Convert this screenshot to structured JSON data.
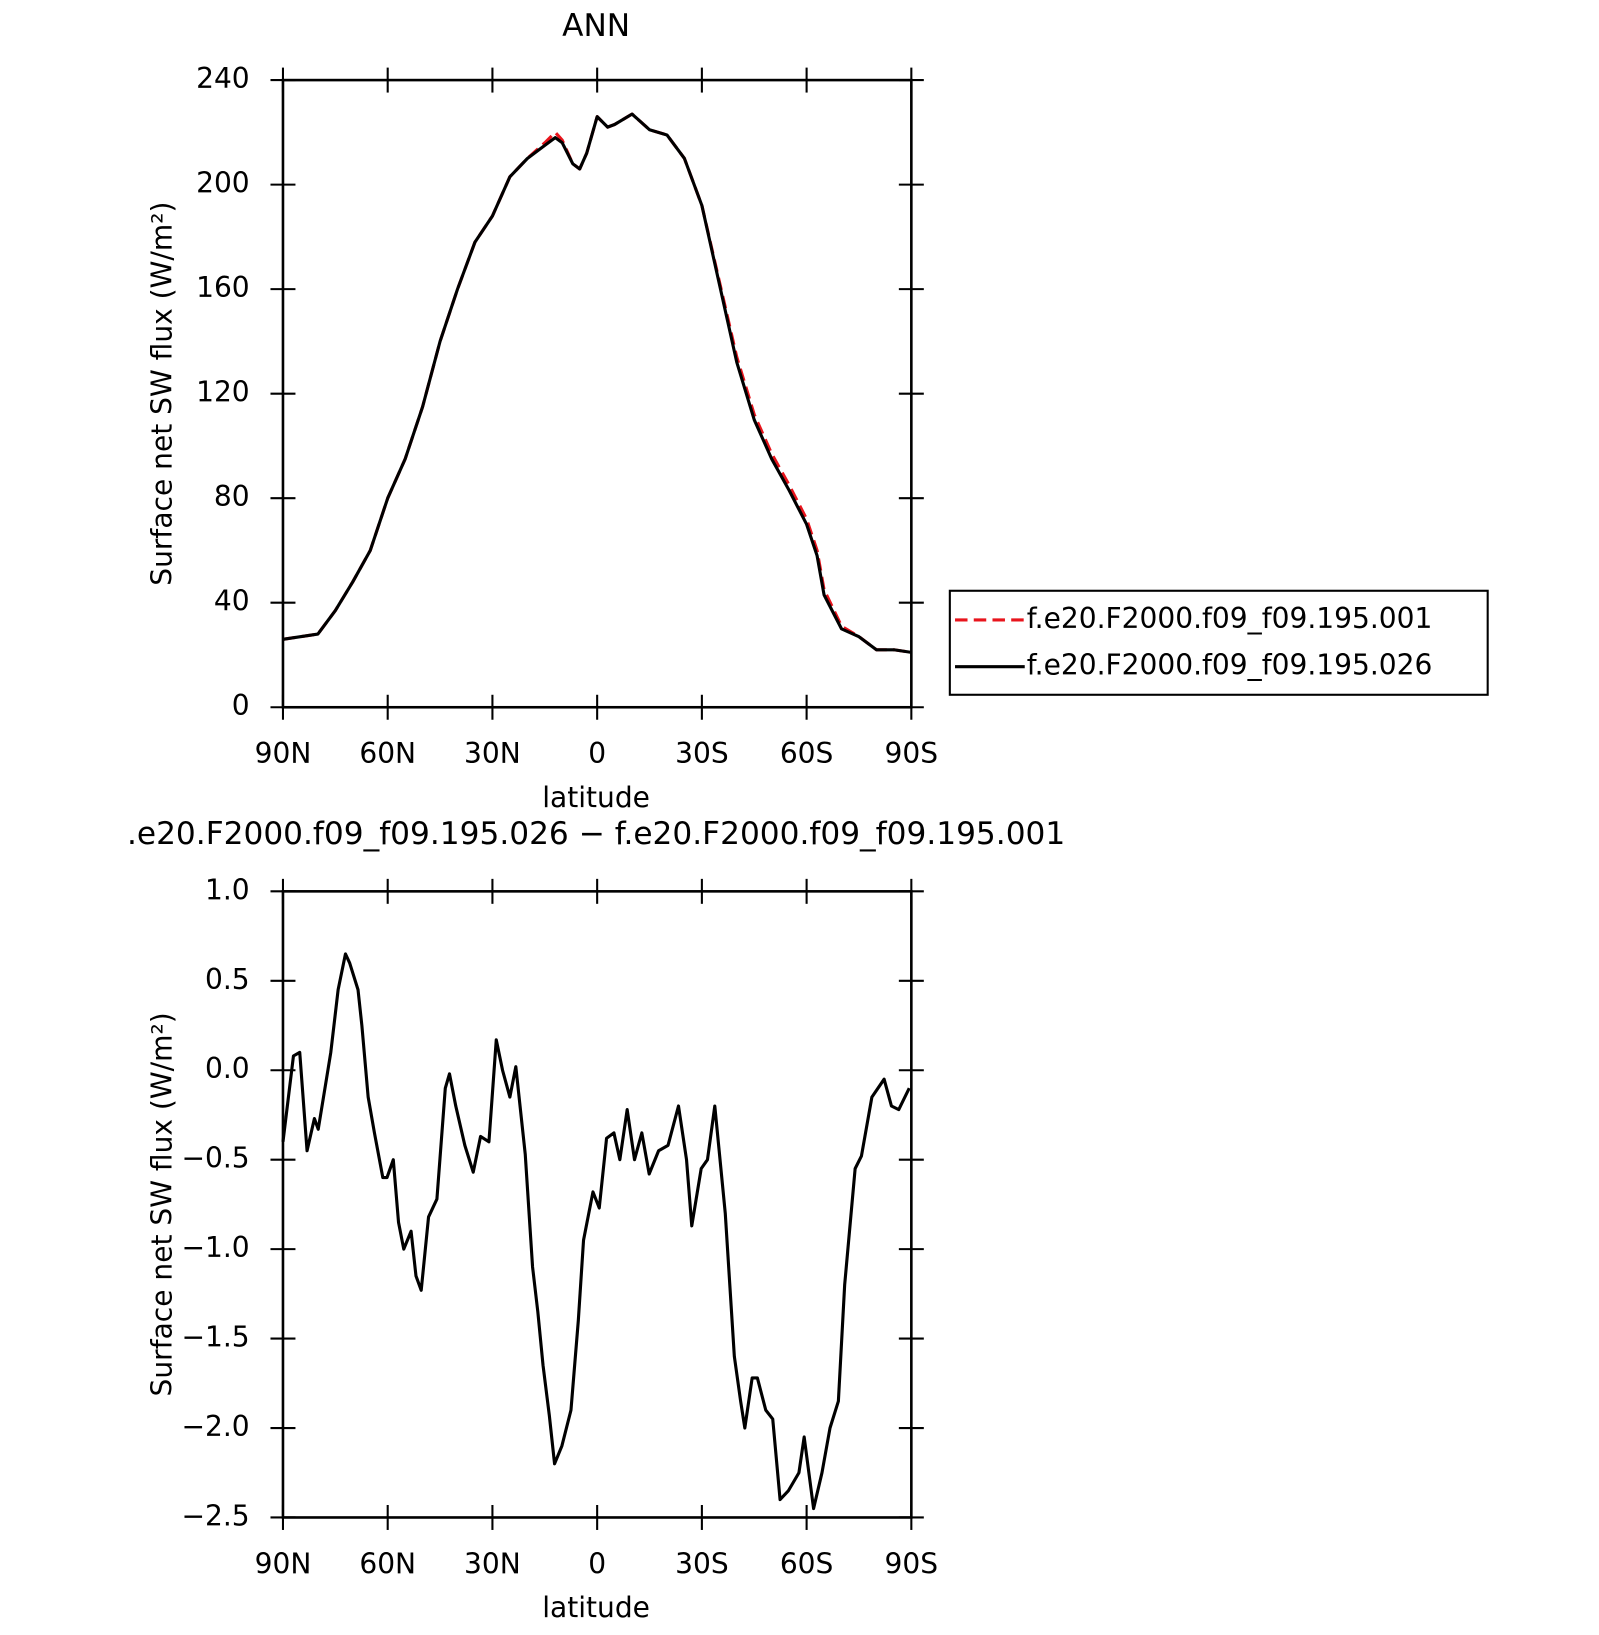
{
  "chart_data": [
    {
      "type": "line",
      "title": "ANN",
      "x_label": "latitude",
      "y_label": "Surface net SW flux (W/m²)",
      "xlim": [
        90,
        -90
      ],
      "xticks": [
        {
          "value": 90,
          "label": "90N"
        },
        {
          "value": 60,
          "label": "60N"
        },
        {
          "value": 30,
          "label": "30N"
        },
        0,
        {
          "value": -30,
          "label": "30S"
        },
        {
          "value": -60,
          "label": "60S"
        },
        {
          "value": -90,
          "label": "90S"
        }
      ],
      "ylim": [
        0,
        240
      ],
      "yticks": [
        0,
        40,
        80,
        120,
        160,
        200,
        240
      ],
      "legend": "right",
      "x": [
        90,
        85,
        80,
        75,
        70,
        65,
        60,
        55,
        50,
        45,
        40,
        35,
        30,
        25,
        20,
        15,
        12,
        10,
        7,
        5,
        3,
        0,
        -3,
        -5,
        -10,
        -15,
        -20,
        -25,
        -30,
        -35,
        -40,
        -45,
        -50,
        -55,
        -60,
        -63,
        -65,
        -70,
        -75,
        -80,
        -85,
        -90
      ],
      "series": [
        {
          "name": "f.e20.F2000.f09_f09.195.001",
          "color": "#e8141c",
          "linestyle": "dashed",
          "values": [
            26,
            27,
            28,
            37,
            48,
            60,
            80,
            95,
            115,
            140,
            160,
            178,
            188,
            203,
            210,
            216,
            220,
            217,
            208,
            206,
            212,
            226,
            222,
            223,
            227,
            221,
            219,
            210,
            192,
            163,
            134,
            112,
            97,
            85,
            72,
            60,
            45,
            31,
            27,
            22,
            22,
            21
          ]
        },
        {
          "name": "f.e20.F2000.f09_f09.195.026",
          "color": "#000000",
          "linestyle": "solid",
          "values": [
            26,
            27,
            28,
            37,
            48,
            60,
            80,
            95,
            115,
            140,
            160,
            178,
            188,
            203,
            210,
            215,
            218,
            216,
            208,
            206,
            212,
            226,
            222,
            223,
            227,
            221,
            219,
            210,
            192,
            162,
            132,
            110,
            95,
            83,
            70,
            58,
            43,
            30,
            27,
            22,
            22,
            21
          ]
        }
      ]
    },
    {
      "type": "line",
      "title": ".e20.F2000.f09_f09.195.026 − f.e20.F2000.f09_f09.195.001",
      "x_label": "latitude",
      "y_label": "Surface net SW flux (W/m²)",
      "xlim": [
        90,
        -90
      ],
      "xticks": [
        {
          "value": 90,
          "label": "90N"
        },
        {
          "value": 60,
          "label": "60N"
        },
        {
          "value": 30,
          "label": "30N"
        },
        0,
        {
          "value": -30,
          "label": "30S"
        },
        {
          "value": -60,
          "label": "60S"
        },
        {
          "value": -90,
          "label": "90S"
        }
      ],
      "ylim": [
        -2.5,
        1
      ],
      "yticks": [
        {
          "value": -2.5,
          "label": "−2.5"
        },
        {
          "value": -2,
          "label": "−2.0"
        },
        {
          "value": -1.5,
          "label": "−1.5"
        },
        {
          "value": -1,
          "label": "−1.0"
        },
        {
          "value": -0.5,
          "label": "−0.5"
        },
        {
          "value": 0,
          "label": "0.0"
        },
        0.5,
        {
          "value": 1,
          "label": "1.0"
        }
      ],
      "x": [
        90,
        87,
        85.2,
        83.1,
        81,
        79.9,
        77.8,
        76.3,
        74.2,
        72.1,
        70.9,
        68.5,
        67.4,
        65.6,
        63.8,
        61.4,
        60.2,
        58.4,
        56.9,
        55.4,
        53.3,
        51.9,
        50.4,
        48.3,
        45.9,
        43.5,
        42.3,
        40.5,
        37.9,
        35.5,
        33.4,
        31,
        28.9,
        27.1,
        25,
        23.3,
        20.6,
        18.5,
        17,
        15.5,
        13.7,
        12.2,
        10.1,
        7.5,
        5.4,
        3.9,
        1.2,
        -0.6,
        -2.7,
        -4.8,
        -6.5,
        -8.6,
        -10.7,
        -12.8,
        -14.9,
        -17.6,
        -20.3,
        -23.3,
        -25.6,
        -27.1,
        -29.8,
        -31.6,
        -33.7,
        -36.7,
        -39.3,
        -41.1,
        -42.3,
        -44.4,
        -45.9,
        -48.3,
        -50.3,
        -52.4,
        -54.8,
        -57.8,
        -59.3,
        -62,
        -64.4,
        -66.7,
        -69.1,
        -70.9,
        -73.9,
        -75.7,
        -78.7,
        -82.2,
        -84.3,
        -86.4,
        -89.4
      ],
      "series": [
        {
          "color": "#000000",
          "linestyle": "solid",
          "values": [
            -0.4,
            0.08,
            0.1,
            -0.45,
            -0.27,
            -0.33,
            -0.08,
            0.1,
            0.45,
            0.65,
            0.6,
            0.45,
            0.25,
            -0.15,
            -0.35,
            -0.6,
            -0.6,
            -0.5,
            -0.85,
            -1.0,
            -0.9,
            -1.15,
            -1.23,
            -0.82,
            -0.72,
            -0.1,
            -0.02,
            -0.2,
            -0.42,
            -0.57,
            -0.37,
            -0.4,
            0.17,
            0.0,
            -0.15,
            0.02,
            -0.47,
            -1.1,
            -1.35,
            -1.65,
            -1.93,
            -2.2,
            -2.1,
            -1.9,
            -1.4,
            -0.95,
            -0.68,
            -0.77,
            -0.38,
            -0.35,
            -0.5,
            -0.22,
            -0.5,
            -0.35,
            -0.58,
            -0.45,
            -0.42,
            -0.2,
            -0.5,
            -0.87,
            -0.55,
            -0.5,
            -0.2,
            -0.8,
            -1.6,
            -1.85,
            -2.0,
            -1.72,
            -1.72,
            -1.9,
            -1.95,
            -2.4,
            -2.35,
            -2.25,
            -2.05,
            -2.45,
            -2.25,
            -2.0,
            -1.85,
            -1.2,
            -0.55,
            -0.48,
            -0.15,
            -0.05,
            -0.2,
            -0.22,
            -0.1
          ]
        }
      ]
    }
  ]
}
